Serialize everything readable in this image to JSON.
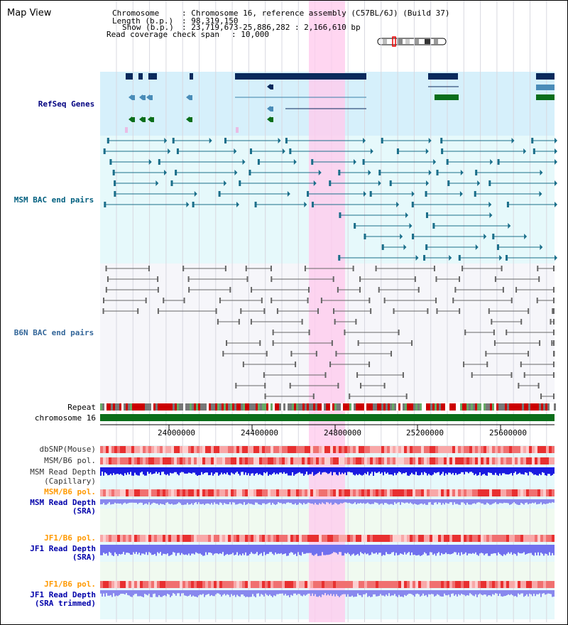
{
  "header": {
    "title": "Map View",
    "chromosome_label": "Chromosome",
    "chromosome_value": ": Chromosome 16, reference assembly (C57BL/6J) (Build 37)",
    "length_label": "Length (b.p.)",
    "length_value": ": 98,319,150",
    "show_label": "Show (b.p.)",
    "show_value": ": 23,719,673-25,886,282 : 2,166,610 bp",
    "coverage_label": "Read coverage check span",
    "coverage_value": ": 10,000"
  },
  "tracks": {
    "refseq": "RefSeq Genes",
    "msm_bac": "MSM BAC end pairs",
    "b6n_bac": "B6N BAC end pairs",
    "repeat": "Repeat",
    "chromosome": "chromosome 16",
    "dbsnp": "dbSNP(Mouse)",
    "msm_b6_pol_1": "MSM/B6 pol.",
    "msm_read_depth_cap_1": "MSM Read Depth",
    "msm_read_depth_cap_2": "(Capillary)",
    "msm_b6_pol_2": "MSM/B6 pol.",
    "msm_read_depth_sra_1": "MSM Read Depth",
    "msm_read_depth_sra_2": "(SRA)",
    "jf1_b6_pol_1": "JF1/B6 pol.",
    "jf1_read_depth_sra_1": "JF1 Read Depth",
    "jf1_read_depth_sra_2": "(SRA)",
    "jf1_b6_pol_2": "JF1/B6 pol.",
    "jf1_read_depth_trim_1": "JF1 Read Depth",
    "jf1_read_depth_trim_2": "(SRA trimmed)"
  },
  "ruler": {
    "ticks": [
      "24000000",
      "24400000",
      "24800000",
      "25200000",
      "25600000"
    ]
  },
  "colors": {
    "refseq_label": "#000080",
    "msm_label": "#005f7f",
    "b6n_label": "#336699",
    "orange_label": "#ff9900",
    "blue_label": "#0000aa",
    "highlight": "#ffccee"
  }
}
